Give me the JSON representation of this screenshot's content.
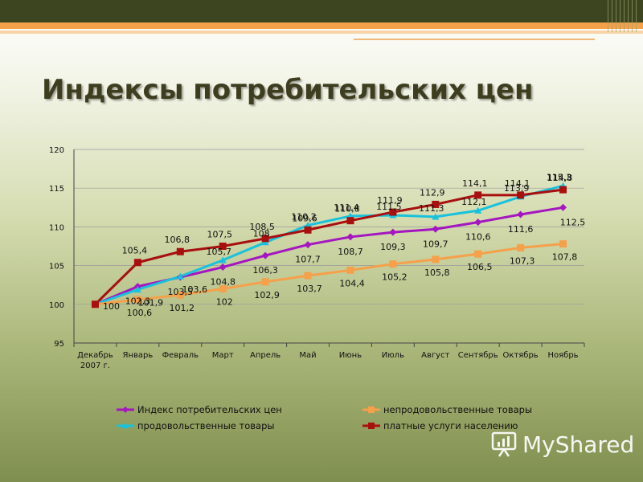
{
  "page": {
    "title": "Индексы потребительских цен"
  },
  "watermark": {
    "text": "MyShared"
  },
  "colors": {
    "cpi": "#a416c0",
    "nonfood": "#f5a04a",
    "food": "#19c2dc",
    "services": "#a80f0f"
  },
  "chart_data": {
    "type": "line",
    "title": "",
    "categories": [
      "Декабрь 2007 г.",
      "Январь",
      "Февраль",
      "Март",
      "Апрель",
      "Май",
      "Июнь",
      "Июль",
      "Август",
      "Сентябрь",
      "Октябрь",
      "Ноябрь"
    ],
    "category_lines": [
      [
        "Декабрь",
        "2007 г."
      ],
      [
        "Январь"
      ],
      [
        "Февраль"
      ],
      [
        "Март"
      ],
      [
        "Апрель"
      ],
      [
        "Май"
      ],
      [
        "Июнь"
      ],
      [
        "Июль"
      ],
      [
        "Август"
      ],
      [
        "Сентябрь"
      ],
      [
        "Октябрь"
      ],
      [
        "Ноябрь"
      ]
    ],
    "ylim": [
      95,
      120
    ],
    "yticks": [
      95,
      100,
      105,
      110,
      115,
      120
    ],
    "grid": true,
    "legend_position": "bottom",
    "series": [
      {
        "name": "Индекс потребительских цен",
        "key": "cpi",
        "marker": "diamond",
        "values": [
          100,
          102.3,
          103.5,
          104.8,
          106.3,
          107.7,
          108.7,
          109.3,
          109.7,
          110.6,
          111.6,
          112.5
        ],
        "labels": [
          "100",
          "102,3",
          "103,5",
          "104,8",
          "106,3",
          "107,7",
          "108,7",
          "109,3",
          "109,7",
          "110,6",
          "111,6",
          "112,5"
        ]
      },
      {
        "name": "продовольственные товары",
        "key": "food",
        "marker": "triangle",
        "values": [
          100,
          101.9,
          103.6,
          105.7,
          108,
          110.2,
          111.4,
          111.5,
          111.3,
          112.1,
          113.9,
          115.3
        ],
        "labels": [
          "",
          "101,9",
          "103,6",
          "105,7",
          "108",
          "110,2",
          "111,4",
          "111,5",
          "111,3",
          "112,1",
          "113,9",
          "115,3"
        ]
      },
      {
        "name": "непродовольственные товары",
        "key": "nonfood",
        "marker": "square",
        "values": [
          100,
          100.6,
          101.2,
          102,
          102.9,
          103.7,
          104.4,
          105.2,
          105.8,
          106.5,
          107.3,
          107.8
        ],
        "labels": [
          "",
          "100,6",
          "101,2",
          "102",
          "102,9",
          "103,7",
          "104,4",
          "105,2",
          "105,8",
          "106,5",
          "107,3",
          "107,8"
        ]
      },
      {
        "name": "платные услуги населению",
        "key": "services",
        "marker": "square",
        "values": [
          100,
          105.4,
          106.8,
          107.5,
          108.5,
          109.6,
          110.8,
          111.9,
          112.9,
          114.1,
          114.1,
          114.8
        ],
        "labels": [
          "",
          "105,4",
          "106,8",
          "107,5",
          "108,5",
          "109,6",
          "110,8",
          "111,9",
          "112,9",
          "114,1",
          "114,1",
          "114,8"
        ]
      }
    ],
    "legend": [
      {
        "name": "Индекс потребительских цен",
        "key": "cpi",
        "marker": "diamond"
      },
      {
        "name": "непродовольственные товары",
        "key": "nonfood",
        "marker": "square"
      },
      {
        "name": "продовольственные товары",
        "key": "food",
        "marker": "triangle"
      },
      {
        "name": "платные услуги населению",
        "key": "services",
        "marker": "square"
      }
    ]
  }
}
